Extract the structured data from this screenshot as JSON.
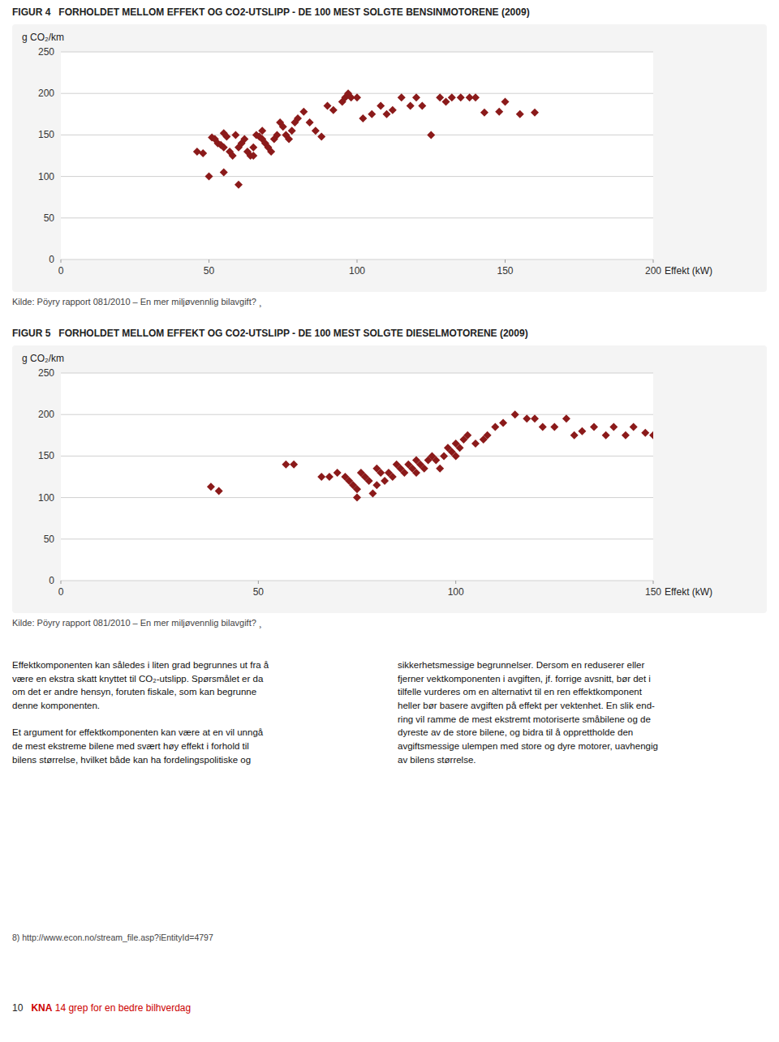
{
  "chart_data": [
    {
      "type": "scatter",
      "title": "FIGUR 4",
      "subtitle": "FORHOLDET MELLOM EFFEKT OG CO2-UTSLIPP - DE 100 MEST SOLGTE BENSINMOTORENE (2009)",
      "x_label": "Effekt (kW)",
      "y_label": "g CO₂/km",
      "source": "Kilde: Pöyry rapport 081/2010 – En mer miljøvennlig bilavgift? ¸",
      "color": "#8B1A1A",
      "marker": "diamond",
      "grid": true,
      "xlim": [
        0,
        200
      ],
      "xticks": [
        0,
        50,
        100,
        150,
        200
      ],
      "ylim": [
        0,
        250
      ],
      "yticks": [
        0,
        50,
        100,
        150,
        200,
        250
      ],
      "x": [
        46,
        48,
        50,
        51,
        52,
        53,
        54,
        55,
        55,
        56,
        57,
        58,
        59,
        60,
        61,
        62,
        63,
        64,
        65,
        66,
        67,
        68,
        68,
        69,
        70,
        71,
        72,
        73,
        74,
        75,
        76,
        77,
        78,
        79,
        80,
        82,
        84,
        86,
        88,
        90,
        92,
        95,
        96,
        97,
        98,
        100,
        102,
        105,
        108,
        110,
        112,
        115,
        118,
        120,
        122,
        125,
        128,
        130,
        132,
        135,
        138,
        140,
        143,
        148,
        150,
        155,
        160,
        55,
        60,
        65
      ],
      "values": [
        130,
        128,
        100,
        147,
        145,
        140,
        138,
        135,
        152,
        148,
        130,
        125,
        150,
        135,
        140,
        145,
        130,
        125,
        135,
        150,
        148,
        145,
        155,
        140,
        135,
        130,
        145,
        150,
        165,
        160,
        150,
        145,
        155,
        165,
        170,
        178,
        165,
        155,
        148,
        185,
        180,
        190,
        195,
        200,
        195,
        195,
        170,
        175,
        185,
        175,
        180,
        195,
        185,
        195,
        185,
        150,
        195,
        190,
        195,
        195,
        195,
        195,
        177,
        178,
        190,
        175,
        177,
        105,
        90,
        125
      ]
    },
    {
      "type": "scatter",
      "title": "FIGUR 5",
      "subtitle": "FORHOLDET MELLOM EFFEKT OG CO2-UTSLIPP - DE 100 MEST SOLGTE DIESELMOTORENE (2009)",
      "x_label": "Effekt (kW)",
      "y_label": "g CO₂/km",
      "source": "Kilde: Pöyry rapport 081/2010 – En mer miljøvennlig bilavgift? ¸",
      "color": "#8B1A1A",
      "marker": "diamond",
      "grid": true,
      "xlim": [
        0,
        150
      ],
      "xticks": [
        0,
        50,
        100,
        150
      ],
      "ylim": [
        0,
        250
      ],
      "yticks": [
        0,
        50,
        100,
        150,
        200,
        250
      ],
      "x": [
        38,
        40,
        57,
        59,
        66,
        68,
        70,
        72,
        73,
        74,
        75,
        76,
        77,
        78,
        79,
        80,
        80,
        81,
        82,
        83,
        84,
        85,
        86,
        87,
        88,
        89,
        90,
        90,
        91,
        92,
        93,
        94,
        95,
        96,
        97,
        98,
        99,
        100,
        100,
        101,
        102,
        103,
        105,
        107,
        108,
        110,
        112,
        115,
        118,
        120,
        122,
        125,
        128,
        130,
        132,
        135,
        138,
        140,
        143,
        145,
        148,
        150,
        75
      ],
      "values": [
        113,
        108,
        140,
        140,
        125,
        125,
        130,
        125,
        120,
        115,
        110,
        130,
        125,
        120,
        105,
        135,
        115,
        130,
        120,
        130,
        125,
        140,
        135,
        130,
        140,
        135,
        145,
        130,
        140,
        135,
        145,
        150,
        145,
        135,
        150,
        160,
        155,
        150,
        165,
        160,
        170,
        175,
        165,
        170,
        175,
        185,
        190,
        200,
        195,
        195,
        185,
        185,
        195,
        175,
        180,
        185,
        175,
        185,
        175,
        185,
        178,
        175,
        100
      ]
    }
  ],
  "page": {
    "body_text_left": "Effektkomponenten kan således i liten grad begrunnes ut fra å\nvære en ekstra skatt knyttet til CO₂-utslipp. Spørsmålet er da\nom det er andre hensyn, foruten fiskale, som kan begrunne\ndenne komponenten.\n\nEt argument for effektkomponenten kan være at en vil unngå\nde mest ekstreme bilene med svært høy effekt i forhold til\nbilens størrelse, hvilket både kan ha fordelingspolitiske og",
    "body_text_right": "sikkerhetsmessige begrunnelser. Dersom en reduserer eller\nfjerner vektkomponenten i avgiften, jf. forrige avsnitt, bør det i\ntilfelle vurderes om en alternativt til en ren effektkomponent\nheller bør basere avgiften på effekt per vektenhet. En slik end-\nring vil ramme de mest ekstremt motoriserte småbilene og de\ndyreste av de store bilene, og bidra til å opprettholde den\navgiftsmessige ulempen med store og dyre motorer, uavhengig\nav bilens størrelse.",
    "footer_url": "8) http://www.econ.no/stream_file.asp?iEntityId=4797",
    "footer_page": "10",
    "footer_pub": "KNA",
    "footer_pub_rest": " 14 grep for en bedre bilhverdag"
  }
}
